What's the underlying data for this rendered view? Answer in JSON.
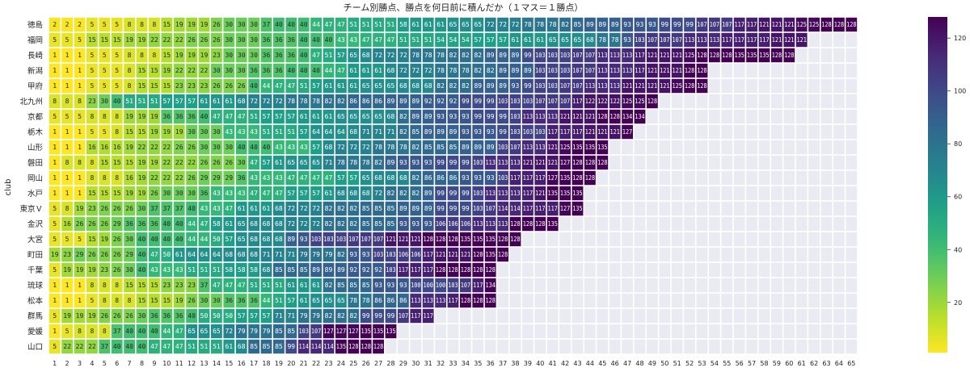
{
  "chart_data": {
    "type": "heatmap",
    "title": "チーム別勝点、勝点を何日前に積んだか（１マス＝１勝点）",
    "ylabel": "club",
    "xlabel": "",
    "x": [
      1,
      2,
      3,
      4,
      5,
      6,
      7,
      8,
      9,
      10,
      11,
      12,
      13,
      14,
      15,
      16,
      17,
      18,
      19,
      20,
      21,
      22,
      23,
      24,
      25,
      26,
      27,
      28,
      29,
      30,
      31,
      32,
      33,
      34,
      35,
      36,
      37,
      38,
      39,
      40,
      41,
      42,
      43,
      44,
      45,
      46,
      47,
      48,
      49,
      50,
      51,
      52,
      53,
      54,
      55,
      56,
      57,
      58,
      59,
      60,
      61,
      62,
      63,
      64,
      65
    ],
    "colormap": "viridis_r",
    "empty_color": "#eaeaf2",
    "colorbar": {
      "ticks": [
        20,
        40,
        60,
        80,
        100,
        120
      ],
      "range": [
        1,
        128
      ]
    },
    "rows": [
      {
        "club": "徳島",
        "values": [
          2,
          2,
          2,
          5,
          5,
          5,
          8,
          8,
          8,
          15,
          19,
          19,
          19,
          26,
          30,
          30,
          30,
          37,
          40,
          40,
          40,
          44,
          47,
          47,
          51,
          51,
          51,
          51,
          58,
          61,
          61,
          61,
          65,
          65,
          65,
          72,
          72,
          72,
          78,
          78,
          78,
          82,
          85,
          89,
          89,
          89,
          93,
          93,
          93,
          99,
          99,
          99,
          107,
          107,
          107,
          117,
          117,
          121,
          121,
          121,
          125,
          125,
          128,
          128,
          128
        ]
      },
      {
        "club": "福岡",
        "values": [
          5,
          5,
          5,
          15,
          15,
          15,
          19,
          19,
          22,
          22,
          22,
          26,
          26,
          26,
          30,
          30,
          30,
          36,
          36,
          36,
          40,
          40,
          40,
          43,
          43,
          47,
          47,
          47,
          51,
          51,
          51,
          54,
          54,
          54,
          57,
          57,
          57,
          61,
          61,
          61,
          65,
          65,
          65,
          68,
          78,
          78,
          93,
          103,
          107,
          107,
          107,
          113,
          113,
          113,
          117,
          117,
          117,
          117,
          121,
          121,
          121
        ]
      },
      {
        "club": "長崎",
        "values": [
          1,
          1,
          1,
          5,
          5,
          5,
          8,
          8,
          8,
          15,
          19,
          19,
          19,
          23,
          30,
          30,
          30,
          36,
          36,
          36,
          40,
          47,
          51,
          57,
          65,
          68,
          72,
          72,
          72,
          78,
          78,
          78,
          82,
          82,
          82,
          89,
          89,
          89,
          99,
          103,
          103,
          103,
          107,
          107,
          113,
          113,
          113,
          117,
          121,
          121,
          121,
          125,
          128,
          128,
          128,
          135,
          135,
          135,
          128,
          128
        ]
      },
      {
        "club": "新潟",
        "values": [
          1,
          1,
          1,
          5,
          5,
          5,
          8,
          15,
          15,
          19,
          22,
          22,
          22,
          30,
          30,
          30,
          36,
          36,
          36,
          40,
          40,
          40,
          44,
          47,
          61,
          61,
          61,
          68,
          72,
          72,
          72,
          78,
          78,
          78,
          82,
          82,
          89,
          89,
          89,
          103,
          103,
          103,
          107,
          107,
          113,
          113,
          113,
          117,
          121,
          121,
          121,
          128,
          128
        ]
      },
      {
        "club": "甲府",
        "values": [
          1,
          1,
          1,
          5,
          5,
          5,
          8,
          15,
          15,
          15,
          23,
          23,
          23,
          26,
          26,
          26,
          40,
          44,
          47,
          47,
          51,
          57,
          61,
          61,
          61,
          65,
          65,
          65,
          68,
          68,
          68,
          82,
          82,
          82,
          89,
          89,
          89,
          93,
          99,
          103,
          103,
          107,
          107,
          113,
          113,
          113,
          121,
          121,
          121,
          121,
          125,
          128,
          128
        ]
      },
      {
        "club": "北九州",
        "values": [
          8,
          8,
          8,
          23,
          30,
          40,
          51,
          51,
          51,
          57,
          57,
          57,
          61,
          61,
          61,
          68,
          72,
          72,
          72,
          78,
          78,
          78,
          82,
          82,
          86,
          86,
          86,
          89,
          89,
          89,
          92,
          92,
          92,
          99,
          99,
          99,
          103,
          103,
          103,
          107,
          107,
          107,
          117,
          122,
          122,
          122,
          125,
          125,
          128
        ]
      },
      {
        "club": "京都",
        "values": [
          5,
          5,
          5,
          8,
          8,
          8,
          19,
          19,
          19,
          36,
          36,
          36,
          40,
          47,
          47,
          47,
          51,
          57,
          57,
          57,
          61,
          61,
          61,
          65,
          65,
          65,
          65,
          68,
          82,
          89,
          89,
          93,
          93,
          93,
          99,
          99,
          99,
          103,
          113,
          113,
          113,
          121,
          121,
          121,
          128,
          128,
          134,
          134
        ]
      },
      {
        "club": "栃木",
        "values": [
          1,
          1,
          1,
          5,
          5,
          8,
          15,
          15,
          19,
          19,
          19,
          30,
          30,
          30,
          43,
          43,
          43,
          51,
          51,
          51,
          57,
          64,
          64,
          64,
          68,
          71,
          71,
          71,
          82,
          85,
          89,
          89,
          89,
          93,
          93,
          93,
          99,
          103,
          103,
          103,
          117,
          117,
          117,
          121,
          121,
          121,
          127
        ]
      },
      {
        "club": "山形",
        "values": [
          1,
          1,
          1,
          16,
          16,
          16,
          19,
          22,
          22,
          22,
          26,
          26,
          30,
          30,
          30,
          40,
          40,
          40,
          43,
          43,
          43,
          57,
          68,
          72,
          72,
          72,
          78,
          78,
          78,
          82,
          85,
          85,
          85,
          89,
          89,
          89,
          103,
          107,
          113,
          113,
          121,
          125,
          135,
          135,
          135
        ]
      },
      {
        "club": "磐田",
        "values": [
          1,
          8,
          8,
          8,
          15,
          15,
          15,
          19,
          19,
          22,
          22,
          22,
          26,
          26,
          26,
          30,
          47,
          57,
          61,
          65,
          65,
          65,
          71,
          78,
          78,
          78,
          82,
          89,
          93,
          93,
          93,
          99,
          99,
          99,
          103,
          113,
          113,
          113,
          121,
          121,
          121,
          127,
          128,
          128,
          128
        ]
      },
      {
        "club": "岡山",
        "values": [
          1,
          1,
          1,
          8,
          8,
          8,
          16,
          19,
          22,
          22,
          22,
          26,
          29,
          29,
          29,
          36,
          43,
          43,
          43,
          47,
          47,
          47,
          47,
          57,
          57,
          65,
          68,
          68,
          68,
          82,
          86,
          86,
          86,
          93,
          93,
          93,
          103,
          117,
          117,
          117,
          127,
          135,
          128,
          128
        ]
      },
      {
        "club": "水戸",
        "values": [
          1,
          1,
          1,
          15,
          15,
          15,
          19,
          19,
          26,
          30,
          30,
          30,
          36,
          43,
          43,
          43,
          47,
          47,
          47,
          57,
          57,
          57,
          61,
          68,
          68,
          68,
          72,
          82,
          82,
          82,
          89,
          99,
          99,
          99,
          103,
          113,
          113,
          113,
          117,
          121,
          135,
          135,
          135
        ]
      },
      {
        "club": "東京Ｖ",
        "values": [
          5,
          8,
          19,
          23,
          26,
          26,
          26,
          30,
          37,
          37,
          37,
          40,
          43,
          43,
          47,
          61,
          61,
          61,
          68,
          72,
          72,
          72,
          82,
          82,
          82,
          85,
          85,
          85,
          89,
          89,
          89,
          99,
          99,
          99,
          103,
          107,
          114,
          114,
          117,
          117,
          117,
          127,
          135
        ]
      },
      {
        "club": "金沢",
        "values": [
          5,
          16,
          26,
          26,
          26,
          29,
          36,
          36,
          36,
          40,
          40,
          44,
          47,
          58,
          61,
          65,
          68,
          68,
          68,
          72,
          72,
          72,
          82,
          82,
          82,
          85,
          85,
          85,
          93,
          93,
          93,
          106,
          106,
          106,
          113,
          113,
          113,
          128,
          128,
          128,
          135
        ]
      },
      {
        "club": "大宮",
        "values": [
          5,
          5,
          5,
          15,
          19,
          26,
          30,
          40,
          40,
          40,
          40,
          44,
          44,
          50,
          57,
          65,
          68,
          68,
          68,
          89,
          93,
          103,
          103,
          103,
          107,
          107,
          107,
          121,
          121,
          121,
          128,
          128,
          128,
          135,
          135,
          135,
          128,
          128
        ]
      },
      {
        "club": "町田",
        "values": [
          19,
          23,
          29,
          26,
          26,
          26,
          29,
          40,
          47,
          50,
          61,
          64,
          64,
          64,
          68,
          68,
          68,
          71,
          71,
          71,
          79,
          79,
          79,
          82,
          93,
          93,
          103,
          103,
          106,
          106,
          117,
          121,
          121,
          121,
          128,
          135,
          128
        ]
      },
      {
        "club": "千葉",
        "values": [
          5,
          19,
          19,
          19,
          23,
          26,
          30,
          40,
          43,
          43,
          43,
          51,
          51,
          51,
          58,
          58,
          58,
          68,
          85,
          85,
          85,
          89,
          89,
          89,
          92,
          92,
          92,
          103,
          117,
          117,
          117,
          128,
          128,
          128,
          128,
          128
        ]
      },
      {
        "club": "琉球",
        "values": [
          1,
          1,
          1,
          8,
          8,
          8,
          15,
          15,
          15,
          23,
          23,
          23,
          37,
          47,
          47,
          47,
          51,
          51,
          51,
          61,
          61,
          61,
          82,
          85,
          85,
          85,
          93,
          93,
          93,
          100,
          100,
          100,
          103,
          107,
          117,
          134
        ]
      },
      {
        "club": "松本",
        "values": [
          1,
          1,
          1,
          5,
          8,
          8,
          8,
          15,
          15,
          15,
          19,
          26,
          30,
          30,
          36,
          36,
          36,
          44,
          51,
          57,
          61,
          65,
          65,
          65,
          78,
          78,
          86,
          86,
          86,
          113,
          113,
          113,
          117,
          128,
          128,
          128
        ]
      },
      {
        "club": "群馬",
        "values": [
          5,
          19,
          19,
          19,
          26,
          26,
          26,
          30,
          36,
          36,
          36,
          40,
          50,
          50,
          50,
          57,
          57,
          57,
          71,
          71,
          79,
          79,
          82,
          82,
          82,
          99,
          99,
          99,
          107,
          117,
          117
        ]
      },
      {
        "club": "愛媛",
        "values": [
          1,
          5,
          8,
          8,
          8,
          37,
          40,
          40,
          40,
          44,
          47,
          65,
          65,
          65,
          72,
          79,
          79,
          79,
          85,
          85,
          103,
          107,
          127,
          127,
          127,
          135,
          135,
          135
        ]
      },
      {
        "club": "山口",
        "values": [
          5,
          22,
          22,
          22,
          37,
          40,
          40,
          40,
          47,
          47,
          47,
          51,
          51,
          51,
          61,
          68,
          85,
          85,
          85,
          99,
          114,
          114,
          114,
          135,
          128,
          128,
          128
        ]
      }
    ]
  }
}
